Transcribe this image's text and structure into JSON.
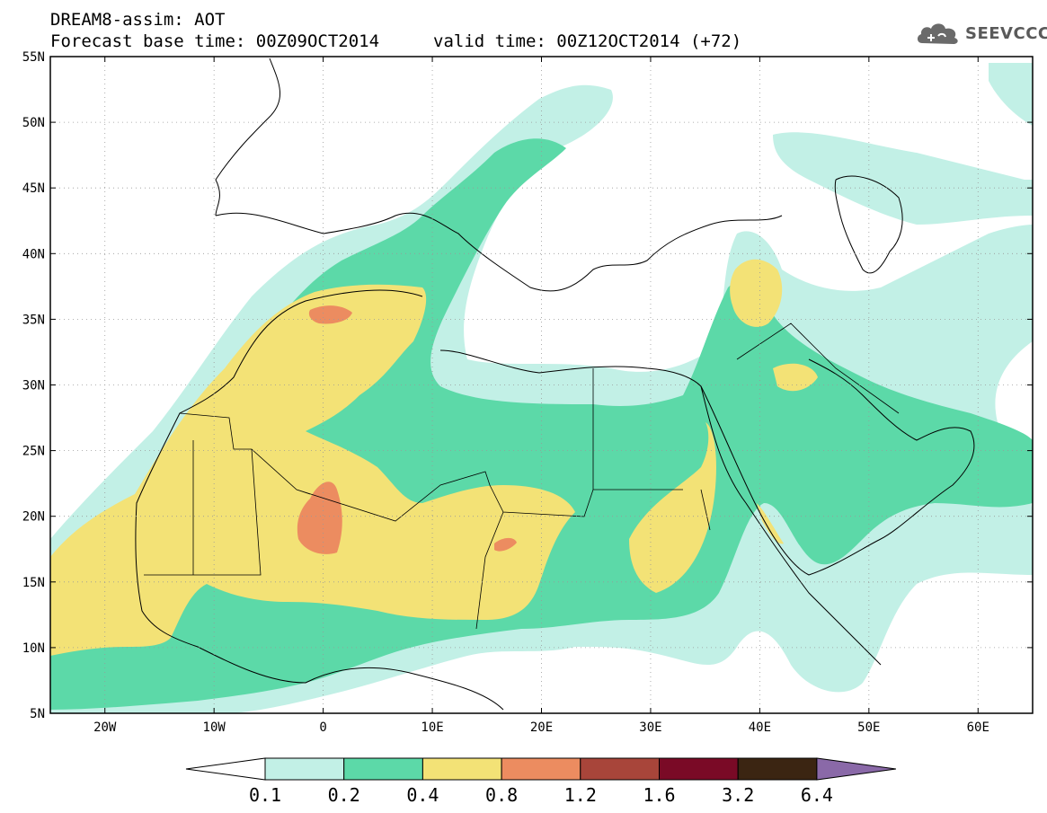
{
  "title": {
    "line1": "DREAM8-assim: AOT",
    "line2a": "Forecast base time: 00Z09OCT2014",
    "line2b": "valid time: 00Z12OCT2014 (+72)"
  },
  "logo": {
    "icon": "cloud-icon",
    "text": "SEEVCCC"
  },
  "map": {
    "lon_range": [
      -25,
      65
    ],
    "lat_range": [
      5,
      55
    ],
    "lat_ticks": [
      "5N",
      "10N",
      "15N",
      "20N",
      "25N",
      "30N",
      "35N",
      "40N",
      "45N",
      "50N",
      "55N"
    ],
    "lon_ticks": [
      "20W",
      "10W",
      "0",
      "10E",
      "20E",
      "30E",
      "40E",
      "50E",
      "60E"
    ],
    "grid": true,
    "region_labels": []
  },
  "colorbar": {
    "labels": [
      "0.1",
      "0.2",
      "0.4",
      "0.8",
      "1.2",
      "1.6",
      "3.2",
      "6.4"
    ],
    "colors": [
      "#c2f0e6",
      "#5cd9a8",
      "#f3e276",
      "#ec8c60",
      "#a8453a",
      "#7a0a26",
      "#3b2512",
      "#8a69a8"
    ]
  }
}
